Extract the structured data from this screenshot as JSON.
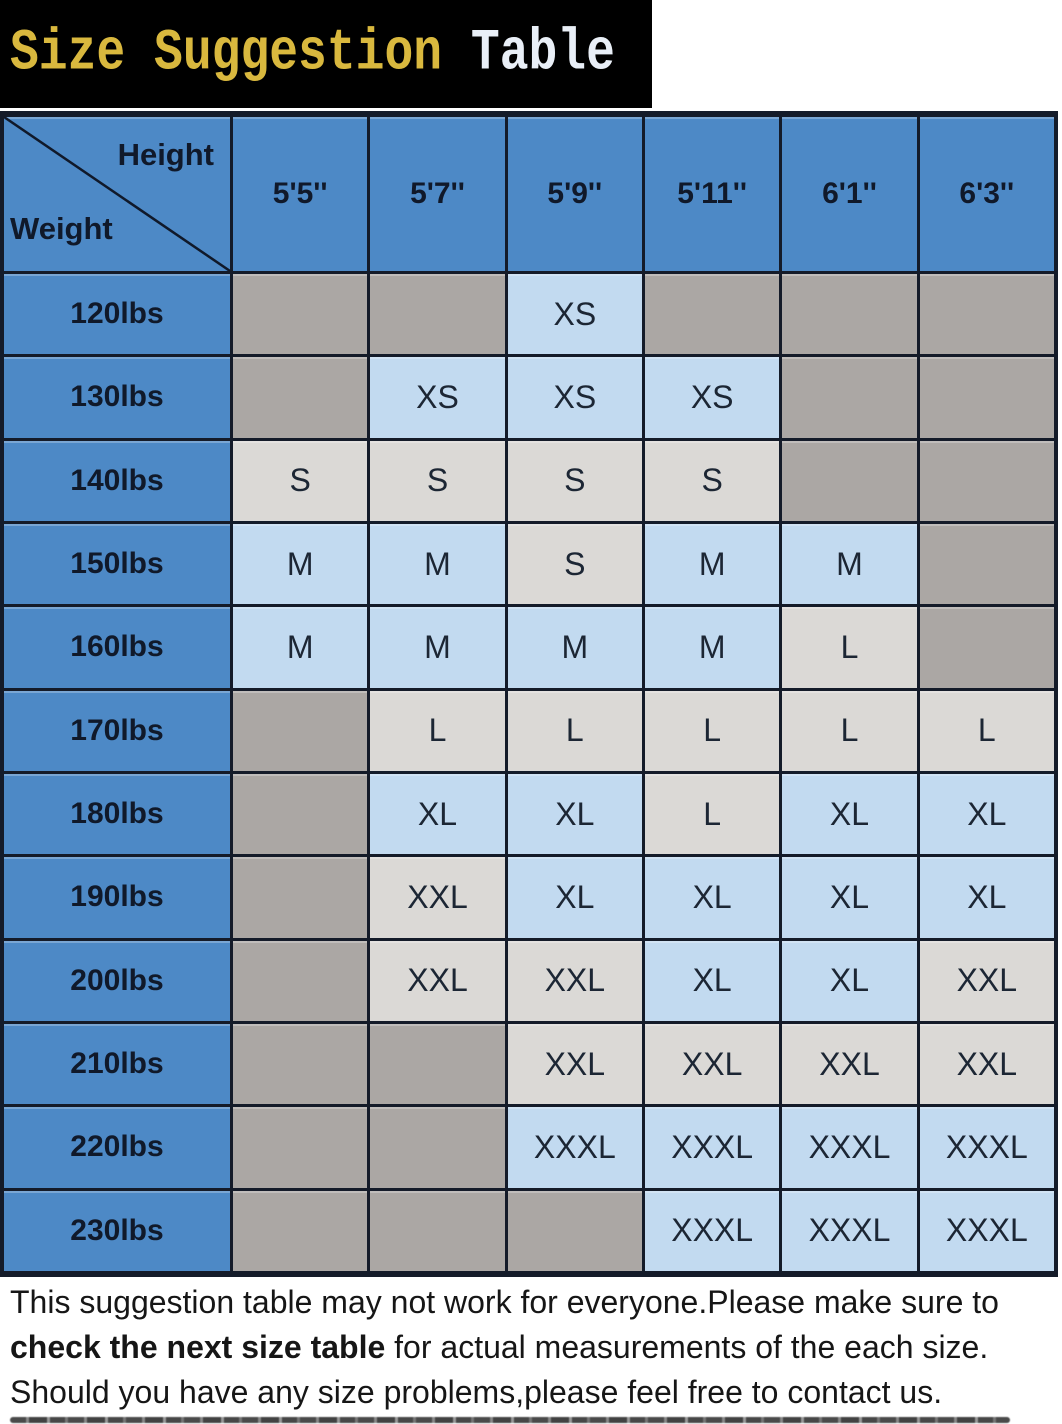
{
  "title": {
    "highlight": "Size Suggestion",
    "rest": "Table"
  },
  "chart_data": {
    "type": "table",
    "title": "Size Suggestion Table",
    "corner": {
      "top": "Height",
      "bottom": "Weight"
    },
    "columns": [
      "5'5''",
      "5'7''",
      "5'9''",
      "5'11''",
      "6'1''",
      "6'3''"
    ],
    "rows": [
      {
        "weight": "120lbs",
        "sizes": [
          "",
          "",
          "XS",
          "",
          "",
          ""
        ]
      },
      {
        "weight": "130lbs",
        "sizes": [
          "",
          "XS",
          "XS",
          "XS",
          "",
          ""
        ]
      },
      {
        "weight": "140lbs",
        "sizes": [
          "S",
          "S",
          "S",
          "S",
          "",
          ""
        ]
      },
      {
        "weight": "150lbs",
        "sizes": [
          "M",
          "M",
          "S",
          "M",
          "M",
          ""
        ]
      },
      {
        "weight": "160lbs",
        "sizes": [
          "M",
          "M",
          "M",
          "M",
          "L",
          ""
        ]
      },
      {
        "weight": "170lbs",
        "sizes": [
          "",
          "L",
          "L",
          "L",
          "L",
          "L"
        ]
      },
      {
        "weight": "180lbs",
        "sizes": [
          "",
          "XL",
          "XL",
          "L",
          "XL",
          "XL"
        ]
      },
      {
        "weight": "190lbs",
        "sizes": [
          "",
          "XXL",
          "XL",
          "XL",
          "XL",
          "XL"
        ]
      },
      {
        "weight": "200lbs",
        "sizes": [
          "",
          "XXL",
          "XXL",
          "XL",
          "XL",
          "XXL"
        ]
      },
      {
        "weight": "210lbs",
        "sizes": [
          "",
          "",
          "XXL",
          "XXL",
          "XXL",
          "XXL"
        ]
      },
      {
        "weight": "220lbs",
        "sizes": [
          "",
          "",
          "XXXL",
          "XXXL",
          "XXXL",
          "XXXL"
        ]
      },
      {
        "weight": "230lbs",
        "sizes": [
          "",
          "",
          "",
          "XXXL",
          "XXXL",
          "XXXL"
        ]
      }
    ],
    "size_fill": {
      "XS": "blue",
      "S": "gray",
      "M": "blue",
      "L": "gray",
      "XL": "blue",
      "XXL": "gray",
      "XXXL": "blue"
    }
  },
  "colors": {
    "title_bg": "#000000",
    "title_highlight": "#d9b83e",
    "title_rest": "#e9eff7",
    "header_blue": "#4d89c6",
    "cell_blue": "#c2daf0",
    "cell_gray": "#dbd9d6",
    "empty_gray": "#aba7a4",
    "grid_border": "#141b29",
    "cell_text": "#1c2634",
    "label_text": "#10192a",
    "footer_text": "#161616"
  },
  "footer": {
    "line1": "This suggestion table may not work for everyone.Please make sure to",
    "line2_bold": "check the next size table",
    "line2_rest": " for actual measurements of the each size.",
    "line3": "Should you have any size problems,please feel free to contact us."
  }
}
